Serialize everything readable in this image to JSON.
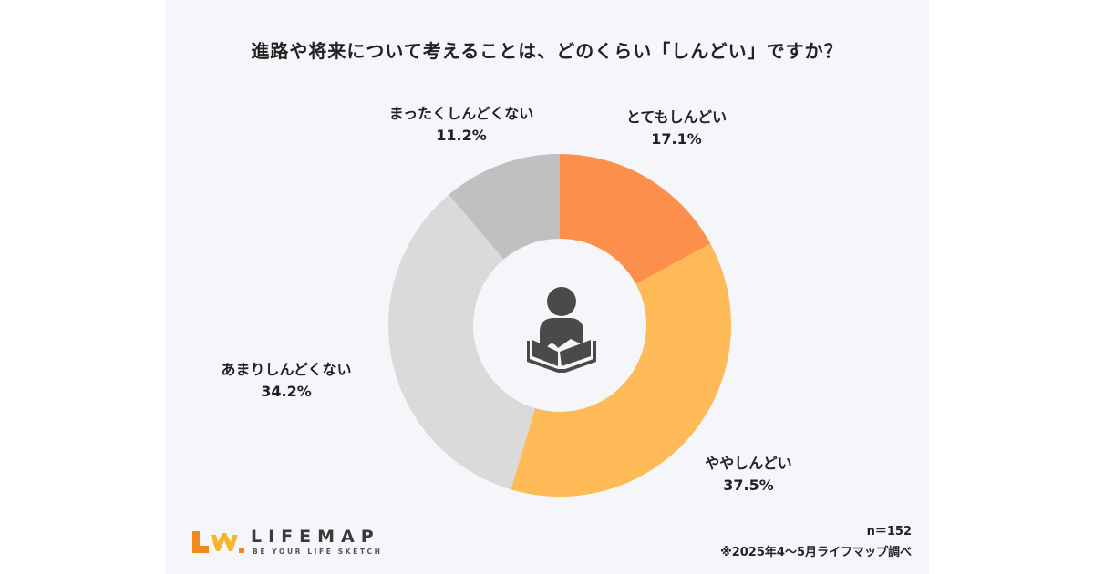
{
  "title": "進路や将来について考えることは、どのくらい「しんどい」ですか？",
  "chart_data": {
    "type": "pie",
    "title": "進路や将来について考えることは、どのくらい「しんどい」ですか？",
    "donut": true,
    "slices": [
      {
        "label": "とてもしんどい",
        "value": 17.1,
        "display": "17.1%",
        "color": "#fd8f4c"
      },
      {
        "label": "ややしんどい",
        "value": 37.5,
        "display": "37.5%",
        "color": "#fdba57"
      },
      {
        "label": "あまりしんどくない",
        "value": 34.2,
        "display": "34.2%",
        "color": "#dadada"
      },
      {
        "label": "まったくしんどくない",
        "value": 11.2,
        "display": "11.2%",
        "color": "#c0c0c0"
      }
    ]
  },
  "center_icon": "person-reading-book-icon",
  "footer": {
    "sample_size": "n＝152",
    "source": "※2025年4〜5月ライフマップ調べ"
  },
  "logo": {
    "name": "LIFEMAP",
    "tagline": "BE YOUR LIFE SKETCH",
    "colors": {
      "primary": "#f08a1c",
      "secondary": "#f7b52c"
    }
  }
}
